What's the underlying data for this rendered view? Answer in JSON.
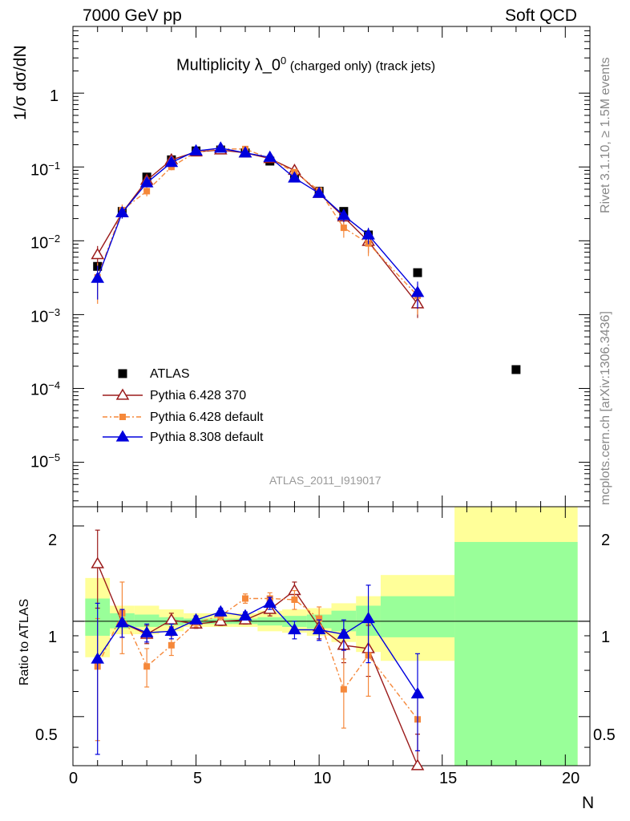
{
  "header": {
    "left": "7000 GeV pp",
    "right": "Soft QCD"
  },
  "plot_title_main": "Multiplicity λ_0",
  "plot_title_sup": "0",
  "plot_title_sub": " (charged only) (track jets)",
  "side_top": "Rivet 3.1.10, ≥ 1.5M events",
  "side_bottom": "mcplots.cern.ch [arXiv:1306.3436]",
  "watermark": "ATLAS_2011_I919017",
  "y_label_top": "1/σ dσ/dN",
  "y_label_bottom": "Ratio to ATLAS",
  "x_label": "N",
  "top_ticks": {
    "y1": "1",
    "y2_base": "10",
    "y2_exp": "−1",
    "y3_base": "10",
    "y3_exp": "−2",
    "y4_base": "10",
    "y4_exp": "−3",
    "y5_base": "10",
    "y5_exp": "−4",
    "y6_base": "10",
    "y6_exp": "−5"
  },
  "ratio_ticks": [
    "2",
    "1",
    "0.5"
  ],
  "x_ticks": [
    "0",
    "5",
    "10",
    "15",
    "20"
  ],
  "legend": [
    {
      "label": "ATLAS",
      "color": "#000000",
      "marker": "square"
    },
    {
      "label": "Pythia 6.428 370",
      "color": "#9b1b1b",
      "marker": "open-triangle"
    },
    {
      "label": "Pythia 6.428 default",
      "color": "#f5883a",
      "marker": "small-square"
    },
    {
      "label": "Pythia 8.308 default",
      "color": "#0000dd",
      "marker": "triangle"
    }
  ],
  "chart_data": {
    "type": "scatter",
    "xlim": [
      0,
      21
    ],
    "ylim_top": [
      2.5e-06,
      8
    ],
    "y_scale_top": "log",
    "ylim_ratio": [
      0.35,
      2.3
    ],
    "y_scale_ratio": "log",
    "series": [
      {
        "name": "ATLAS",
        "x": [
          1,
          2,
          3,
          4,
          5,
          6,
          7,
          8,
          9,
          10,
          11,
          12,
          14,
          18
        ],
        "y": [
          0.0045,
          0.025,
          0.073,
          0.125,
          0.165,
          0.17,
          0.155,
          0.12,
          0.075,
          0.047,
          0.025,
          0.012,
          0.0037,
          0.00018
        ]
      },
      {
        "name": "Pythia 6.428 370",
        "x": [
          1,
          2,
          3,
          4,
          5,
          6,
          7,
          8,
          9,
          10,
          11,
          12,
          14
        ],
        "y": [
          0.0065,
          0.024,
          0.066,
          0.125,
          0.16,
          0.17,
          0.155,
          0.13,
          0.09,
          0.044,
          0.021,
          0.0098,
          0.0014
        ],
        "err": [
          0.002,
          0.004,
          0.007,
          0.01,
          0.01,
          0.01,
          0.01,
          0.01,
          0.008,
          0.005,
          0.004,
          0.003,
          0.0005
        ]
      },
      {
        "name": "Pythia 6.428 default",
        "x": [
          1,
          2,
          3,
          4,
          5,
          6,
          7,
          8,
          9,
          10,
          11,
          12,
          14
        ],
        "y": [
          0.0032,
          0.026,
          0.047,
          0.1,
          0.16,
          0.175,
          0.175,
          0.13,
          0.085,
          0.048,
          0.015,
          0.0092,
          0.0018
        ],
        "err": [
          0.0018,
          0.005,
          0.007,
          0.01,
          0.01,
          0.01,
          0.01,
          0.01,
          0.008,
          0.005,
          0.004,
          0.003,
          0.0008
        ]
      },
      {
        "name": "Pythia 8.308 default",
        "x": [
          1,
          2,
          3,
          4,
          5,
          6,
          7,
          8,
          9,
          10,
          11,
          12,
          14
        ],
        "y": [
          0.0031,
          0.024,
          0.061,
          0.115,
          0.165,
          0.18,
          0.155,
          0.135,
          0.071,
          0.044,
          0.022,
          0.012,
          0.002
        ],
        "err": [
          0.0015,
          0.004,
          0.006,
          0.01,
          0.01,
          0.01,
          0.01,
          0.01,
          0.007,
          0.005,
          0.004,
          0.003,
          0.0008
        ]
      }
    ],
    "ratio_series": [
      {
        "name": "Pythia 6.428 370",
        "x": [
          1,
          2,
          3,
          4,
          5,
          6,
          7,
          8,
          9,
          10,
          11,
          12,
          14
        ],
        "y": [
          1.52,
          0.99,
          0.91,
          1.01,
          0.98,
          1.0,
          1.01,
          1.09,
          1.25,
          0.96,
          0.84,
          0.82,
          0.34
        ],
        "err": [
          0.42,
          0.1,
          0.06,
          0.05,
          0.03,
          0.03,
          0.03,
          0.05,
          0.08,
          0.08,
          0.1,
          0.15,
          0.1
        ]
      },
      {
        "name": "Pythia 6.428 default",
        "x": [
          1,
          2,
          3,
          4,
          5,
          6,
          7,
          8,
          9,
          10,
          11,
          12,
          14
        ],
        "y": [
          0.72,
          1.06,
          0.72,
          0.84,
          0.99,
          1.04,
          1.18,
          1.18,
          1.17,
          1.02,
          0.61,
          0.78,
          0.49
        ],
        "err": [
          0.3,
          0.27,
          0.1,
          0.06,
          0.03,
          0.03,
          0.04,
          0.05,
          0.08,
          0.09,
          0.15,
          0.2,
          0.1
        ]
      },
      {
        "name": "Pythia 8.308 default",
        "x": [
          1,
          2,
          3,
          4,
          5,
          6,
          7,
          8,
          9,
          10,
          11,
          12,
          14
        ],
        "y": [
          0.76,
          0.99,
          0.92,
          0.93,
          1.01,
          1.07,
          1.04,
          1.14,
          0.94,
          0.94,
          0.91,
          1.02,
          0.59
        ],
        "err": [
          0.38,
          0.1,
          0.06,
          0.05,
          0.03,
          0.03,
          0.03,
          0.05,
          0.06,
          0.07,
          0.1,
          0.28,
          0.2
        ]
      }
    ],
    "bands": [
      {
        "x0": 0.5,
        "x1": 1.5,
        "g": [
          0.9,
          1.18
        ],
        "y": [
          0.77,
          1.37
        ]
      },
      {
        "x0": 1.5,
        "x1": 2.5,
        "g": [
          0.95,
          1.06
        ],
        "y": [
          0.91,
          1.12
        ]
      },
      {
        "x0": 2.5,
        "x1": 3.5,
        "g": [
          0.96,
          1.05
        ],
        "y": [
          0.91,
          1.12
        ]
      },
      {
        "x0": 3.5,
        "x1": 4.5,
        "g": [
          0.97,
          1.03
        ],
        "y": [
          0.93,
          1.09
        ]
      },
      {
        "x0": 4.5,
        "x1": 5.5,
        "g": [
          0.98,
          1.02
        ],
        "y": [
          0.96,
          1.06
        ]
      },
      {
        "x0": 5.5,
        "x1": 6.5,
        "g": [
          0.98,
          1.02
        ],
        "y": [
          0.96,
          1.06
        ]
      },
      {
        "x0": 6.5,
        "x1": 7.5,
        "g": [
          0.98,
          1.02
        ],
        "y": [
          0.96,
          1.06
        ]
      },
      {
        "x0": 7.5,
        "x1": 8.5,
        "g": [
          0.97,
          1.03
        ],
        "y": [
          0.93,
          1.08
        ]
      },
      {
        "x0": 8.5,
        "x1": 9.5,
        "g": [
          0.96,
          1.04
        ],
        "y": [
          0.92,
          1.09
        ]
      },
      {
        "x0": 9.5,
        "x1": 10.5,
        "g": [
          0.95,
          1.05
        ],
        "y": [
          0.9,
          1.1
        ]
      },
      {
        "x0": 10.5,
        "x1": 11.5,
        "g": [
          0.93,
          1.08
        ],
        "y": [
          0.86,
          1.14
        ]
      },
      {
        "x0": 11.5,
        "x1": 12.5,
        "g": [
          0.9,
          1.12
        ],
        "y": [
          0.8,
          1.2
        ]
      },
      {
        "x0": 12.5,
        "x1": 15.5,
        "g": [
          0.89,
          1.2
        ],
        "y": [
          0.75,
          1.4
        ]
      },
      {
        "x0": 15.5,
        "x1": 20.5,
        "g": [
          0.35,
          1.78
        ],
        "y": [
          0.35,
          2.3
        ]
      }
    ]
  }
}
